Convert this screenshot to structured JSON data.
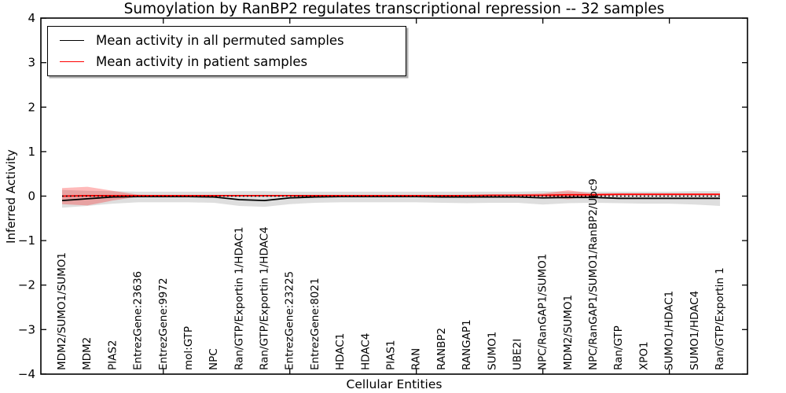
{
  "figure": {
    "title": "Sumoylation by RanBP2 regulates transcriptional repression -- 32 samples",
    "xlabel": "Cellular Entities",
    "ylabel": "Inferred Activity"
  },
  "legend": {
    "entries": [
      {
        "label": "Mean activity in all permuted samples",
        "color": "#000000"
      },
      {
        "label": "Mean activity in patient samples",
        "color": "#ff0000"
      }
    ]
  },
  "chart_data": {
    "type": "line",
    "title": "Sumoylation by RanBP2 regulates transcriptional repression -- 32 samples",
    "xlabel": "Cellular Entities",
    "ylabel": "Inferred Activity",
    "ylim": [
      -4,
      4
    ],
    "ytick_values": [
      4,
      3,
      2,
      1,
      0,
      -1,
      -2,
      -3,
      -4
    ],
    "ytick_labels": [
      "4",
      "3",
      "2",
      "1",
      "0",
      "−1",
      "−2",
      "−3",
      "−4"
    ],
    "xtick_index_positions": [
      4,
      9,
      14,
      19,
      24
    ],
    "grid": false,
    "legend_position": "upper left",
    "categories": [
      "MDM2/SUMO1/SUMO1",
      "MDM2",
      "PIAS2",
      "EntrezGene:23636",
      "EntrezGene:9972",
      "mol:GTP",
      "NPC",
      "Ran/GTP/Exportin 1/HDAC1",
      "Ran/GTP/Exportin 1/HDAC4",
      "EntrezGene:23225",
      "EntrezGene:8021",
      "HDAC1",
      "HDAC4",
      "PIAS1",
      "RAN",
      "RANBP2",
      "RANGAP1",
      "SUMO1",
      "UBE2I",
      "NPC/RanGAP1/SUMO1",
      "MDM2/SUMO1",
      "NPC/RanGAP1/SUMO1/RanBP2/Ubc9",
      "Ran/GTP",
      "XPO1",
      "SUMO1/HDAC1",
      "SUMO1/HDAC4",
      "Ran/GTP/Exportin 1"
    ],
    "zero_line": {
      "y": 0,
      "style": "dotted",
      "color": "#000000"
    },
    "series": [
      {
        "name": "Permuted samples std band",
        "type": "band",
        "fill": "rgba(0,0,0,0.13)",
        "upper": [
          0.14,
          0.12,
          0.11,
          0.1,
          0.1,
          0.1,
          0.1,
          0.11,
          0.11,
          0.1,
          0.1,
          0.1,
          0.1,
          0.1,
          0.1,
          0.1,
          0.1,
          0.1,
          0.1,
          0.11,
          0.1,
          0.1,
          0.1,
          0.1,
          0.1,
          0.11,
          0.11
        ],
        "lower": [
          -0.26,
          -0.22,
          -0.17,
          -0.14,
          -0.14,
          -0.14,
          -0.15,
          -0.22,
          -0.24,
          -0.18,
          -0.15,
          -0.14,
          -0.14,
          -0.14,
          -0.14,
          -0.15,
          -0.16,
          -0.15,
          -0.15,
          -0.19,
          -0.16,
          -0.15,
          -0.16,
          -0.17,
          -0.17,
          -0.19,
          -0.22
        ]
      },
      {
        "name": "Patient samples std band",
        "type": "band",
        "fill": "rgba(255,0,0,0.27)",
        "upper": [
          0.18,
          0.21,
          0.12,
          0.03,
          0.02,
          0.02,
          0.02,
          0.02,
          0.02,
          0.02,
          0.02,
          0.02,
          0.02,
          0.02,
          0.02,
          0.02,
          0.03,
          0.03,
          0.04,
          0.06,
          0.13,
          0.06,
          0.06,
          0.06,
          0.06,
          0.06,
          0.06
        ],
        "lower": [
          -0.18,
          -0.21,
          -0.1,
          -0.01,
          0.0,
          0.0,
          0.0,
          0.0,
          0.0,
          0.0,
          0.0,
          0.0,
          0.0,
          0.0,
          0.0,
          0.0,
          -0.01,
          0.0,
          0.0,
          -0.01,
          -0.07,
          0.01,
          0.02,
          0.02,
          0.02,
          0.02,
          0.02
        ]
      },
      {
        "name": "Mean activity in all permuted samples",
        "type": "line",
        "color": "#000000",
        "values": [
          -0.1,
          -0.06,
          -0.02,
          -0.01,
          -0.01,
          -0.01,
          -0.02,
          -0.08,
          -0.1,
          -0.04,
          -0.02,
          -0.01,
          -0.01,
          -0.01,
          -0.01,
          -0.02,
          -0.02,
          -0.02,
          -0.02,
          -0.04,
          -0.03,
          -0.03,
          -0.05,
          -0.05,
          -0.05,
          -0.05,
          -0.05
        ]
      },
      {
        "name": "Mean activity in patient samples",
        "type": "line",
        "color": "#ff0000",
        "values": [
          0.0,
          0.01,
          0.01,
          0.01,
          0.01,
          0.01,
          0.01,
          0.01,
          0.01,
          0.01,
          0.01,
          0.01,
          0.01,
          0.01,
          0.01,
          0.01,
          0.01,
          0.02,
          0.02,
          0.02,
          0.03,
          0.03,
          0.04,
          0.04,
          0.04,
          0.04,
          0.04
        ]
      }
    ]
  }
}
